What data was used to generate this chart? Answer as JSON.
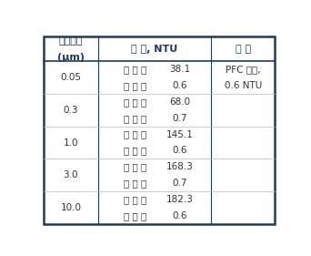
{
  "particle_sizes": [
    "0.05",
    "0.3",
    "1.0",
    "3.0",
    "10.0"
  ],
  "before_label": "증 류 전",
  "after_label": "증 류 후",
  "before_values": [
    "38.1",
    "68.0",
    "145.1",
    "168.3",
    "182.3"
  ],
  "after_values": [
    "0.6",
    "0.7",
    "0.6",
    "0.7",
    "0.6"
  ],
  "header1": "입자크기",
  "header1b": "(μm)",
  "header2": "탁 도, NTU",
  "header3": "참 고",
  "note_line1": "PFC 원액,",
  "note_line2": "0.6 NTU",
  "border_color": "#1e3a5f",
  "text_color": "#333333",
  "header_color": "#1e3a5f",
  "divider_color": "#888888",
  "font_size": 7.5,
  "header_font_size": 8.0,
  "fig_width": 3.42,
  "fig_height": 2.81,
  "dpi": 100
}
